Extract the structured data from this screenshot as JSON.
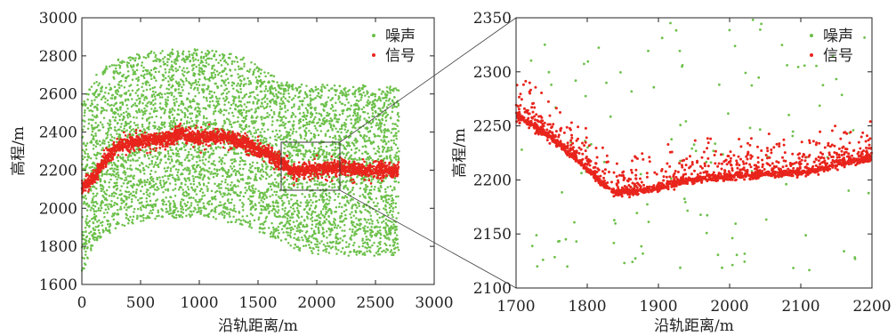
{
  "chart_data": [
    {
      "type": "scatter",
      "title": "",
      "xlabel": "沿轨距离/m",
      "ylabel": "高程/m",
      "xlim": [
        0,
        3000
      ],
      "ylim": [
        1600,
        3000
      ],
      "xticks": [
        "0",
        "500",
        "1000",
        "1500",
        "2000",
        "2500",
        "3000"
      ],
      "yticks": [
        "1600",
        "1800",
        "2000",
        "2200",
        "2400",
        "2600",
        "2800",
        "3000"
      ],
      "grid": false,
      "legend_position": "top-right",
      "series": [
        {
          "name": "噪声",
          "color": "#6cc04a",
          "distribution": "uniform band",
          "x_range": [
            0,
            2700
          ],
          "upper_envelope": {
            "x": [
              0,
              100,
              300,
              700,
              1100,
              1400,
              1600,
              1800,
              2000,
              2300,
              2700
            ],
            "y": [
              2550,
              2700,
              2800,
              2840,
              2840,
              2800,
              2720,
              2660,
              2660,
              2650,
              2650
            ]
          },
          "lower_envelope": {
            "x": [
              0,
              100,
              300,
              700,
              1100,
              1400,
              1600,
              1800,
              2000,
              2300,
              2700
            ],
            "y": [
              1650,
              1800,
              1900,
              1950,
              1950,
              1900,
              1850,
              1780,
              1760,
              1750,
              1750
            ]
          }
        },
        {
          "name": "信号",
          "color": "#e8241c",
          "profile": {
            "x": [
              0,
              100,
              200,
              300,
              400,
              500,
              600,
              700,
              800,
              850,
              900,
              1000,
              1100,
              1200,
              1300,
              1400,
              1500,
              1600,
              1700,
              1800,
              1900,
              2000,
              2100,
              2200,
              2300,
              2400,
              2500,
              2600,
              2700
            ],
            "y": [
              2110,
              2160,
              2260,
              2320,
              2340,
              2350,
              2360,
              2360,
              2380,
              2400,
              2370,
              2370,
              2370,
              2370,
              2360,
              2340,
              2310,
              2280,
              2240,
              2190,
              2200,
              2205,
              2210,
              2215,
              2205,
              2200,
              2200,
              2200,
              2195
            ]
          },
          "spread": 40
        }
      ],
      "zoom_box": {
        "x": [
          1700,
          2200
        ],
        "y": [
          2100,
          2350
        ]
      }
    },
    {
      "type": "scatter",
      "title": "",
      "xlabel": "沿轨距离/m",
      "ylabel": "高程/m",
      "xlim": [
        1700,
        2200
      ],
      "ylim": [
        2100,
        2350
      ],
      "xticks": [
        "1700",
        "1800",
        "1900",
        "2000",
        "2100",
        "2200"
      ],
      "yticks": [
        "2100",
        "2150",
        "2200",
        "2250",
        "2300",
        "2350"
      ],
      "grid": false,
      "legend_position": "top-right",
      "series": [
        {
          "name": "噪声",
          "color": "#6cc04a",
          "distribution": "sparse uniform",
          "count": 130
        },
        {
          "name": "信号",
          "color": "#e8241c",
          "profile": {
            "x": [
              1700,
              1720,
              1750,
              1780,
              1800,
              1820,
              1840,
              1860,
              1880,
              1900,
              1950,
              2000,
              2050,
              2100,
              2130,
              2150,
              2180,
              2200
            ],
            "y": [
              2260,
              2252,
              2238,
              2222,
              2210,
              2197,
              2188,
              2189,
              2190,
              2193,
              2200,
              2203,
              2205,
              2207,
              2210,
              2215,
              2218,
              2220
            ]
          },
          "scatter_above_max": 45
        }
      ]
    }
  ]
}
